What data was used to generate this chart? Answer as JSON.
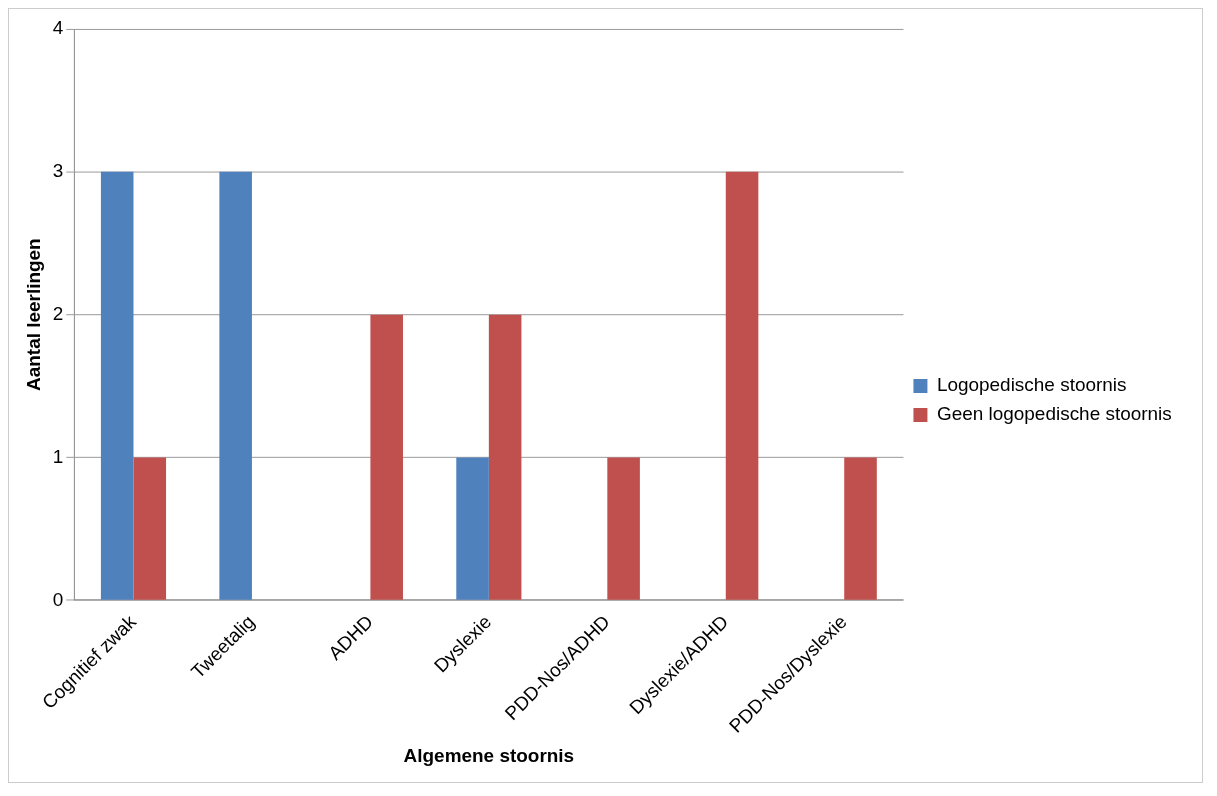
{
  "chart_data": {
    "type": "bar",
    "xlabel": "Algemene stoornis",
    "ylabel": "Aantal leerlingen",
    "categories": [
      "Cognitief zwak",
      "Tweetalig",
      "ADHD",
      "Dyslexie",
      "PDD-Nos/ADHD",
      "Dyslexie/ADHD",
      "PDD-Nos/Dyslexie"
    ],
    "series": [
      {
        "name": "Logopedische stoornis",
        "color": "#4f81bd",
        "values": [
          3,
          3,
          0,
          1,
          0,
          0,
          0
        ]
      },
      {
        "name": "Geen logopedische stoornis",
        "color": "#c0504d",
        "values": [
          1,
          0,
          2,
          2,
          1,
          3,
          1
        ]
      }
    ],
    "ylim": [
      0,
      4
    ],
    "yticks": [
      0,
      1,
      2,
      3,
      4
    ],
    "grid": "y",
    "legend": "right"
  }
}
